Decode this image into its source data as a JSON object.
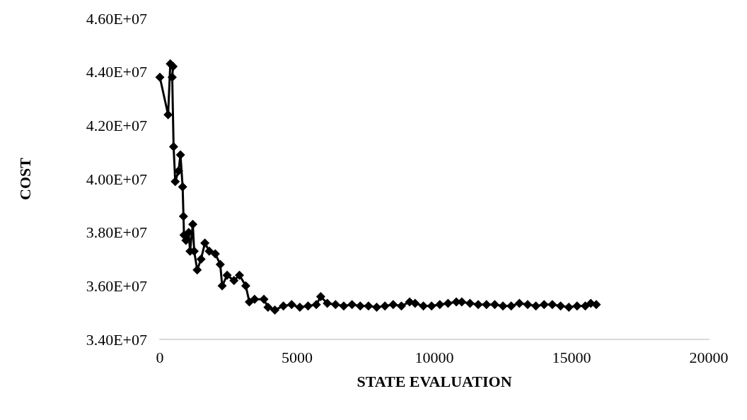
{
  "chart_data": {
    "type": "line",
    "xlabel": "STATE EVALUATION",
    "ylabel": "COST",
    "marker": "diamond",
    "line_style": "solid",
    "grid": false,
    "xlim": [
      0,
      20000
    ],
    "xticks": [
      0,
      5000,
      10000,
      15000,
      20000
    ],
    "ylim": [
      34000000,
      46000000
    ],
    "yticks": [
      {
        "value": 34000000,
        "label": "3.40E+07"
      },
      {
        "value": 36000000,
        "label": "3.60E+07"
      },
      {
        "value": 38000000,
        "label": "3.80E+07"
      },
      {
        "value": 40000000,
        "label": "4.00E+07"
      },
      {
        "value": 42000000,
        "label": "4.20E+07"
      },
      {
        "value": 44000000,
        "label": "4.40E+07"
      },
      {
        "value": 46000000,
        "label": "4.60E+07"
      }
    ],
    "series": [
      {
        "color": "#000000",
        "x": [
          0,
          300,
          380,
          480,
          450,
          500,
          560,
          680,
          750,
          830,
          860,
          880,
          950,
          1050,
          1100,
          1200,
          1250,
          1360,
          1500,
          1640,
          1800,
          2020,
          2200,
          2270,
          2450,
          2700,
          2900,
          3130,
          3260,
          3450,
          3790,
          3940,
          4190,
          4500,
          4800,
          5100,
          5400,
          5700,
          5860,
          6100,
          6400,
          6700,
          7000,
          7300,
          7600,
          7900,
          8200,
          8500,
          8800,
          9100,
          9300,
          9600,
          9900,
          10200,
          10500,
          10800,
          11000,
          11300,
          11600,
          11900,
          12200,
          12500,
          12800,
          13100,
          13400,
          13700,
          14000,
          14300,
          14600,
          14900,
          15200,
          15500,
          15700,
          15900
        ],
        "values": [
          43800000,
          42400000,
          44300000,
          44200000,
          43800000,
          41200000,
          39900000,
          40300000,
          40900000,
          39700000,
          38600000,
          37900000,
          37700000,
          38000000,
          37300000,
          38300000,
          37300000,
          36600000,
          37000000,
          37600000,
          37300000,
          37200000,
          36800000,
          36000000,
          36400000,
          36200000,
          36400000,
          36000000,
          35400000,
          35500000,
          35500000,
          35200000,
          35100000,
          35250000,
          35300000,
          35200000,
          35250000,
          35300000,
          35600000,
          35350000,
          35300000,
          35250000,
          35300000,
          35250000,
          35250000,
          35200000,
          35250000,
          35300000,
          35250000,
          35400000,
          35350000,
          35250000,
          35250000,
          35300000,
          35350000,
          35400000,
          35400000,
          35350000,
          35300000,
          35300000,
          35300000,
          35250000,
          35250000,
          35350000,
          35300000,
          35250000,
          35300000,
          35300000,
          35250000,
          35200000,
          35250000,
          35250000,
          35350000,
          35300000
        ]
      }
    ]
  }
}
